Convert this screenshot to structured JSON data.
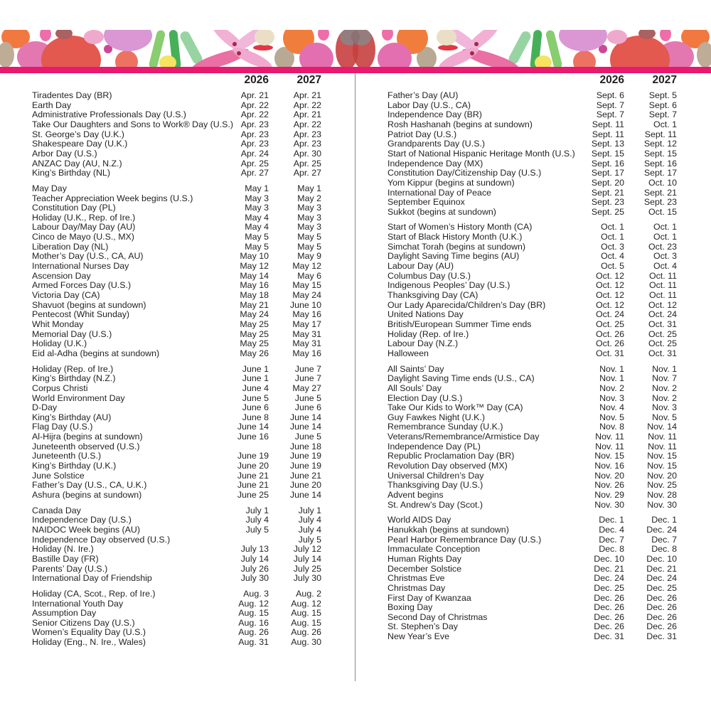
{
  "colors": {
    "accent_bar": "#e8196e",
    "text": "#231f20",
    "divider": "#8a8a8a"
  },
  "banner": {
    "decoration": "watercolor-floral-pattern"
  },
  "left": {
    "year_headers": [
      "2026",
      "2027"
    ],
    "groups": [
      {
        "rows": [
          {
            "name": "Tiradentes Day (BR)",
            "d2026": "Apr. 21",
            "d2027": "Apr. 21"
          },
          {
            "name": "Earth Day",
            "d2026": "Apr. 22",
            "d2027": "Apr. 22"
          },
          {
            "name": "Administrative Professionals Day (U.S.)",
            "d2026": "Apr. 22",
            "d2027": "Apr. 21"
          },
          {
            "name": "Take Our Daughters and Sons to Work® Day (U.S.)",
            "d2026": "Apr. 23",
            "d2027": "Apr. 22"
          },
          {
            "name": "St. George’s Day (U.K.)",
            "d2026": "Apr. 23",
            "d2027": "Apr. 23"
          },
          {
            "name": "Shakespeare Day (U.K.)",
            "d2026": "Apr. 23",
            "d2027": "Apr. 23"
          },
          {
            "name": "Arbor Day (U.S.)",
            "d2026": "Apr. 24",
            "d2027": "Apr. 30"
          },
          {
            "name": "ANZAC Day (AU, N.Z.)",
            "d2026": "Apr. 25",
            "d2027": "Apr. 25"
          },
          {
            "name": "King’s Birthday (NL)",
            "d2026": "Apr. 27",
            "d2027": "Apr. 27"
          }
        ]
      },
      {
        "rows": [
          {
            "name": "May Day",
            "d2026": "May 1",
            "d2027": "May 1"
          },
          {
            "name": "Teacher Appreciation Week begins (U.S.)",
            "d2026": "May 3",
            "d2027": "May 2"
          },
          {
            "name": "Constitution Day (PL)",
            "d2026": "May 3",
            "d2027": "May 3"
          },
          {
            "name": "Holiday (U.K., Rep. of Ire.)",
            "d2026": "May 4",
            "d2027": "May 3"
          },
          {
            "name": "Labour Day/May Day (AU)",
            "d2026": "May 4",
            "d2027": "May 3"
          },
          {
            "name": "Cinco de Mayo (U.S., MX)",
            "d2026": "May 5",
            "d2027": "May 5"
          },
          {
            "name": "Liberation Day (NL)",
            "d2026": "May 5",
            "d2027": "May 5"
          },
          {
            "name": "Mother’s Day (U.S., CA, AU)",
            "d2026": "May 10",
            "d2027": "May 9"
          },
          {
            "name": "International Nurses Day",
            "d2026": "May 12",
            "d2027": "May 12"
          },
          {
            "name": "Ascension Day",
            "d2026": "May 14",
            "d2027": "May 6"
          },
          {
            "name": "Armed Forces Day (U.S.)",
            "d2026": "May 16",
            "d2027": "May 15"
          },
          {
            "name": "Victoria Day (CA)",
            "d2026": "May 18",
            "d2027": "May 24"
          },
          {
            "name": "Shavuot (begins at sundown)",
            "d2026": "May 21",
            "d2027": "June 10"
          },
          {
            "name": "Pentecost (Whit Sunday)",
            "d2026": "May 24",
            "d2027": "May 16"
          },
          {
            "name": "Whit Monday",
            "d2026": "May 25",
            "d2027": "May 17"
          },
          {
            "name": "Memorial Day (U.S.)",
            "d2026": "May 25",
            "d2027": "May 31"
          },
          {
            "name": "Holiday (U.K.)",
            "d2026": "May 25",
            "d2027": "May 31"
          },
          {
            "name": "Eid al-Adha (begins at sundown)",
            "d2026": "May 26",
            "d2027": "May 16"
          }
        ]
      },
      {
        "rows": [
          {
            "name": "Holiday (Rep. of Ire.)",
            "d2026": "June 1",
            "d2027": "June 7"
          },
          {
            "name": "King’s Birthday (N.Z.)",
            "d2026": "June 1",
            "d2027": "June 7"
          },
          {
            "name": "Corpus Christi",
            "d2026": "June 4",
            "d2027": "May 27"
          },
          {
            "name": "World Environment Day",
            "d2026": "June 5",
            "d2027": "June 5"
          },
          {
            "name": "D-Day",
            "d2026": "June 6",
            "d2027": "June 6"
          },
          {
            "name": "King’s Birthday (AU)",
            "d2026": "June 8",
            "d2027": "June 14"
          },
          {
            "name": "Flag Day (U.S.)",
            "d2026": "June 14",
            "d2027": "June 14"
          },
          {
            "name": "Al-Hijra (begins at sundown)",
            "d2026": "June 16",
            "d2027": "June 5"
          },
          {
            "name": "Juneteenth observed (U.S.)",
            "d2026": "",
            "d2027": "June 18"
          },
          {
            "name": "Juneteenth (U.S.)",
            "d2026": "June 19",
            "d2027": "June 19"
          },
          {
            "name": "King’s Birthday (U.K.)",
            "d2026": "June 20",
            "d2027": "June 19"
          },
          {
            "name": "June Solstice",
            "d2026": "June 21",
            "d2027": "June 21"
          },
          {
            "name": "Father’s Day (U.S., CA, U.K.)",
            "d2026": "June 21",
            "d2027": "June 20"
          },
          {
            "name": "Ashura (begins at sundown)",
            "d2026": "June 25",
            "d2027": "June 14"
          }
        ]
      },
      {
        "rows": [
          {
            "name": "Canada Day",
            "d2026": "July 1",
            "d2027": "July 1"
          },
          {
            "name": "Independence Day (U.S.)",
            "d2026": "July 4",
            "d2027": "July 4"
          },
          {
            "name": "NAIDOC Week begins (AU)",
            "d2026": "July 5",
            "d2027": "July 4"
          },
          {
            "name": "Independence Day observed (U.S.)",
            "d2026": "",
            "d2027": "July 5"
          },
          {
            "name": "Holiday (N. Ire.)",
            "d2026": "July 13",
            "d2027": "July 12"
          },
          {
            "name": "Bastille Day (FR)",
            "d2026": "July 14",
            "d2027": "July 14"
          },
          {
            "name": "Parents’ Day (U.S.)",
            "d2026": "July 26",
            "d2027": "July 25"
          },
          {
            "name": "International Day of Friendship",
            "d2026": "July 30",
            "d2027": "July 30"
          }
        ]
      },
      {
        "rows": [
          {
            "name": "Holiday (CA, Scot., Rep. of Ire.)",
            "d2026": "Aug. 3",
            "d2027": "Aug. 2"
          },
          {
            "name": "International Youth Day",
            "d2026": "Aug. 12",
            "d2027": "Aug. 12"
          },
          {
            "name": "Assumption Day",
            "d2026": "Aug. 15",
            "d2027": "Aug. 15"
          },
          {
            "name": "Senior Citizens Day (U.S.)",
            "d2026": "Aug. 16",
            "d2027": "Aug. 15"
          },
          {
            "name": "Women’s Equality Day (U.S.)",
            "d2026": "Aug. 26",
            "d2027": "Aug. 26"
          },
          {
            "name": "Holiday (Eng., N. Ire., Wales)",
            "d2026": "Aug. 31",
            "d2027": "Aug. 30"
          }
        ]
      }
    ]
  },
  "right": {
    "year_headers": [
      "2026",
      "2027"
    ],
    "groups": [
      {
        "rows": [
          {
            "name": "Father’s Day (AU)",
            "d2026": "Sept. 6",
            "d2027": "Sept. 5"
          },
          {
            "name": "Labor Day (U.S., CA)",
            "d2026": "Sept. 7",
            "d2027": "Sept. 6"
          },
          {
            "name": "Independence Day (BR)",
            "d2026": "Sept. 7",
            "d2027": "Sept. 7"
          },
          {
            "name": "Rosh Hashanah (begins at sundown)",
            "d2026": "Sept. 11",
            "d2027": "Oct. 1"
          },
          {
            "name": "Patriot Day (U.S.)",
            "d2026": "Sept. 11",
            "d2027": "Sept. 11"
          },
          {
            "name": "Grandparents Day (U.S.)",
            "d2026": "Sept. 13",
            "d2027": "Sept. 12"
          },
          {
            "name": "Start of National Hispanic Heritage Month (U.S.)",
            "d2026": "Sept. 15",
            "d2027": "Sept. 15"
          },
          {
            "name": "Independence Day (MX)",
            "d2026": "Sept. 16",
            "d2027": "Sept. 16"
          },
          {
            "name": "Constitution Day/Citizenship Day (U.S.)",
            "d2026": "Sept. 17",
            "d2027": "Sept. 17"
          },
          {
            "name": "Yom Kippur (begins at sundown)",
            "d2026": "Sept. 20",
            "d2027": "Oct. 10"
          },
          {
            "name": "International Day of Peace",
            "d2026": "Sept. 21",
            "d2027": "Sept. 21"
          },
          {
            "name": "September Equinox",
            "d2026": "Sept. 23",
            "d2027": "Sept. 23"
          },
          {
            "name": "Sukkot (begins at sundown)",
            "d2026": "Sept. 25",
            "d2027": "Oct. 15"
          }
        ]
      },
      {
        "rows": [
          {
            "name": "Start of Women’s History Month (CA)",
            "d2026": "Oct. 1",
            "d2027": "Oct. 1"
          },
          {
            "name": "Start of Black History Month (U.K.)",
            "d2026": "Oct. 1",
            "d2027": "Oct. 1"
          },
          {
            "name": "Simchat Torah (begins at sundown)",
            "d2026": "Oct. 3",
            "d2027": "Oct. 23"
          },
          {
            "name": "Daylight Saving Time begins (AU)",
            "d2026": "Oct. 4",
            "d2027": "Oct. 3"
          },
          {
            "name": "Labour Day (AU)",
            "d2026": "Oct. 5",
            "d2027": "Oct. 4"
          },
          {
            "name": "Columbus Day (U.S.)",
            "d2026": "Oct. 12",
            "d2027": "Oct. 11"
          },
          {
            "name": "Indigenous Peoples’ Day (U.S.)",
            "d2026": "Oct. 12",
            "d2027": "Oct. 11"
          },
          {
            "name": "Thanksgiving Day (CA)",
            "d2026": "Oct. 12",
            "d2027": "Oct. 11"
          },
          {
            "name": "Our Lady Aparecida/Children’s Day (BR)",
            "d2026": "Oct. 12",
            "d2027": "Oct. 12"
          },
          {
            "name": "United Nations Day",
            "d2026": "Oct. 24",
            "d2027": "Oct. 24"
          },
          {
            "name": "British/European Summer Time ends",
            "d2026": "Oct. 25",
            "d2027": "Oct. 31"
          },
          {
            "name": "Holiday (Rep. of Ire.)",
            "d2026": "Oct. 26",
            "d2027": "Oct. 25"
          },
          {
            "name": "Labour Day (N.Z.)",
            "d2026": "Oct. 26",
            "d2027": "Oct. 25"
          },
          {
            "name": "Halloween",
            "d2026": "Oct. 31",
            "d2027": "Oct. 31"
          }
        ]
      },
      {
        "rows": [
          {
            "name": "All Saints’ Day",
            "d2026": "Nov. 1",
            "d2027": "Nov. 1"
          },
          {
            "name": "Daylight Saving Time ends (U.S., CA)",
            "d2026": "Nov. 1",
            "d2027": "Nov. 7"
          },
          {
            "name": "All Souls’ Day",
            "d2026": "Nov. 2",
            "d2027": "Nov. 2"
          },
          {
            "name": "Election Day (U.S.)",
            "d2026": "Nov. 3",
            "d2027": "Nov. 2"
          },
          {
            "name": "Take Our Kids to Work™ Day (CA)",
            "d2026": "Nov. 4",
            "d2027": "Nov. 3"
          },
          {
            "name": "Guy Fawkes Night (U.K.)",
            "d2026": "Nov. 5",
            "d2027": "Nov. 5"
          },
          {
            "name": "Remembrance Sunday (U.K.)",
            "d2026": "Nov. 8",
            "d2027": "Nov. 14"
          },
          {
            "name": "Veterans/Remembrance/Armistice Day",
            "d2026": "Nov. 11",
            "d2027": "Nov. 11"
          },
          {
            "name": "Independence Day (PL)",
            "d2026": "Nov. 11",
            "d2027": "Nov. 11"
          },
          {
            "name": "Republic Proclamation Day (BR)",
            "d2026": "Nov. 15",
            "d2027": "Nov. 15"
          },
          {
            "name": "Revolution Day observed (MX)",
            "d2026": "Nov. 16",
            "d2027": "Nov. 15"
          },
          {
            "name": "Universal Children’s Day",
            "d2026": "Nov. 20",
            "d2027": "Nov. 20"
          },
          {
            "name": "Thanksgiving Day (U.S.)",
            "d2026": "Nov. 26",
            "d2027": "Nov. 25"
          },
          {
            "name": "Advent begins",
            "d2026": "Nov. 29",
            "d2027": "Nov. 28"
          },
          {
            "name": "St. Andrew’s Day (Scot.)",
            "d2026": "Nov. 30",
            "d2027": "Nov. 30"
          }
        ]
      },
      {
        "rows": [
          {
            "name": "World AIDS Day",
            "d2026": "Dec. 1",
            "d2027": "Dec. 1"
          },
          {
            "name": "Hanukkah (begins at sundown)",
            "d2026": "Dec. 4",
            "d2027": "Dec. 24"
          },
          {
            "name": "Pearl Harbor Remembrance Day (U.S.)",
            "d2026": "Dec. 7",
            "d2027": "Dec. 7"
          },
          {
            "name": "Immaculate Conception",
            "d2026": "Dec. 8",
            "d2027": "Dec. 8"
          },
          {
            "name": "Human Rights Day",
            "d2026": "Dec. 10",
            "d2027": "Dec. 10"
          },
          {
            "name": "December Solstice",
            "d2026": "Dec. 21",
            "d2027": "Dec. 21"
          },
          {
            "name": "Christmas Eve",
            "d2026": "Dec. 24",
            "d2027": "Dec. 24"
          },
          {
            "name": "Christmas Day",
            "d2026": "Dec. 25",
            "d2027": "Dec. 25"
          },
          {
            "name": "First Day of Kwanzaa",
            "d2026": "Dec. 26",
            "d2027": "Dec. 26"
          },
          {
            "name": "Boxing Day",
            "d2026": "Dec. 26",
            "d2027": "Dec. 26"
          },
          {
            "name": "Second Day of Christmas",
            "d2026": "Dec. 26",
            "d2027": "Dec. 26"
          },
          {
            "name": "St. Stephen’s Day",
            "d2026": "Dec. 26",
            "d2027": "Dec. 26"
          },
          {
            "name": "New Year’s Eve",
            "d2026": "Dec. 31",
            "d2027": "Dec. 31"
          }
        ]
      }
    ]
  }
}
